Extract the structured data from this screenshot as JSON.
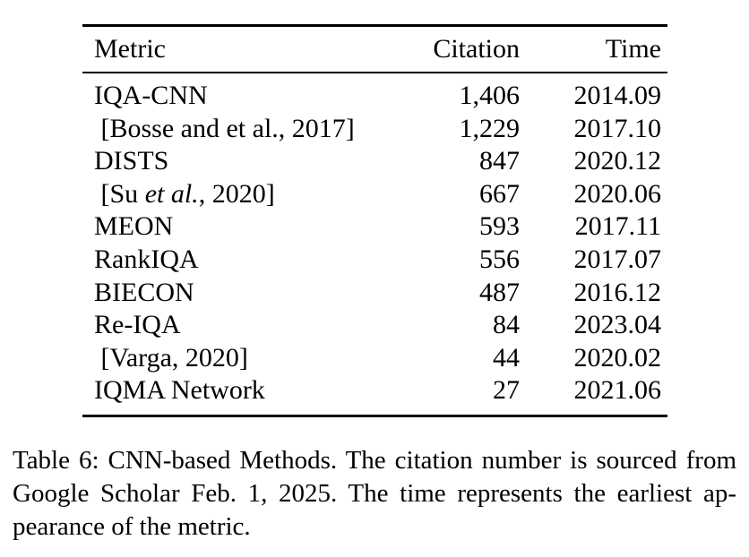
{
  "table": {
    "headers": {
      "metric": "Metric",
      "citation": "Citation",
      "time": "Time"
    },
    "rows": [
      {
        "metric_pre": "IQA-CNN",
        "metric_italic": "",
        "metric_post": "",
        "citation": "1,406",
        "time": "2014.09"
      },
      {
        "metric_pre": " [Bosse and et al., 2017]",
        "metric_italic": "",
        "metric_post": "",
        "citation": "1,229",
        "time": "2017.10"
      },
      {
        "metric_pre": "DISTS",
        "metric_italic": "",
        "metric_post": "",
        "citation": "847",
        "time": "2020.12"
      },
      {
        "metric_pre": " [Su ",
        "metric_italic": "et al.",
        "metric_post": ", 2020]",
        "citation": "667",
        "time": "2020.06"
      },
      {
        "metric_pre": "MEON",
        "metric_italic": "",
        "metric_post": "",
        "citation": "593",
        "time": "2017.11"
      },
      {
        "metric_pre": "RankIQA",
        "metric_italic": "",
        "metric_post": "",
        "citation": "556",
        "time": "2017.07"
      },
      {
        "metric_pre": "BIECON",
        "metric_italic": "",
        "metric_post": "",
        "citation": "487",
        "time": "2016.12"
      },
      {
        "metric_pre": "Re-IQA",
        "metric_italic": "",
        "metric_post": "",
        "citation": "84",
        "time": "2023.04"
      },
      {
        "metric_pre": " [Varga, 2020]",
        "metric_italic": "",
        "metric_post": "",
        "citation": "44",
        "time": "2020.02"
      },
      {
        "metric_pre": "IQMA Network",
        "metric_italic": "",
        "metric_post": "",
        "citation": "27",
        "time": "2021.06"
      }
    ]
  },
  "caption": {
    "lines": [
      "Table 6: CNN-based Methods. The citation number is sourced from",
      "Google Scholar Feb.  1, 2025.  The time represents the earliest ap-",
      "pearance of the metric."
    ],
    "full_text": "Table 6: CNN-based Methods. The citation number is sourced from Google Scholar Feb. 1, 2025. The time represents the earliest appearance of the metric."
  },
  "colors": {
    "text": "#000000",
    "background": "#ffffff",
    "rule": "#000000"
  }
}
